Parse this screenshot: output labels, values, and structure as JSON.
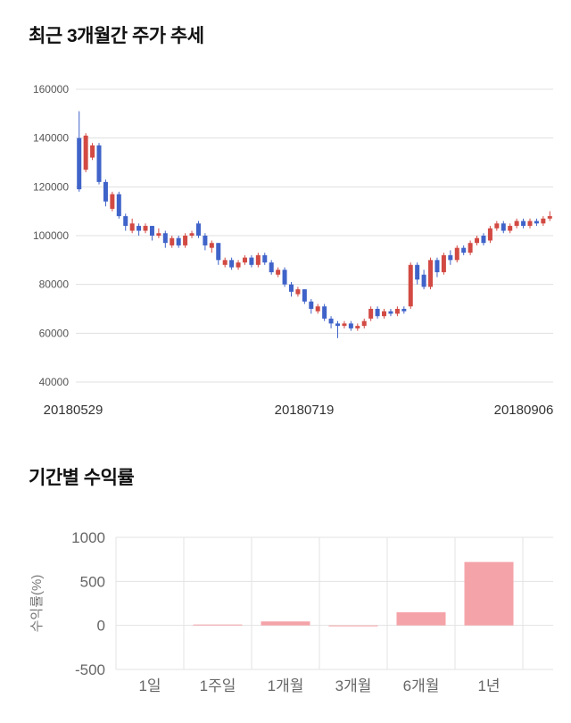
{
  "page": {
    "background": "#ffffff"
  },
  "section1": {
    "title": "최근 3개월간 주가 추세"
  },
  "section2": {
    "title": "기간별 수익률"
  },
  "chart_data": [
    {
      "type": "candlestick",
      "title": "최근 3개월간 주가 추세",
      "x_tick_labels": [
        "20180529",
        "20180719",
        "20180906"
      ],
      "y_ticks": [
        160000,
        140000,
        120000,
        100000,
        80000,
        60000,
        40000
      ],
      "ylim": [
        40000,
        160000
      ],
      "grid": true,
      "colors": {
        "up": "#d24a43",
        "down": "#3f63c9",
        "grid": "#e0e0e0",
        "axis_text": "#555555",
        "date_text": "#333333"
      },
      "candles_format": [
        "open",
        "high",
        "low",
        "close"
      ],
      "candles": [
        [
          140000,
          151000,
          118000,
          119000
        ],
        [
          127000,
          142000,
          126000,
          141000
        ],
        [
          132000,
          138000,
          131000,
          137000
        ],
        [
          137000,
          138000,
          121000,
          122000
        ],
        [
          122000,
          123000,
          112000,
          114000
        ],
        [
          111000,
          118000,
          110000,
          117000
        ],
        [
          117000,
          118000,
          107000,
          108000
        ],
        [
          108000,
          109000,
          102000,
          104000
        ],
        [
          102000,
          107000,
          101000,
          105000
        ],
        [
          104000,
          105000,
          100000,
          102000
        ],
        [
          102000,
          105000,
          101000,
          104000
        ],
        [
          104000,
          104000,
          98000,
          100000
        ],
        [
          100000,
          103000,
          99000,
          101000
        ],
        [
          101000,
          102000,
          95000,
          97000
        ],
        [
          96000,
          100000,
          95000,
          99000
        ],
        [
          99000,
          100000,
          95000,
          96000
        ],
        [
          96000,
          101000,
          95000,
          100000
        ],
        [
          100000,
          102000,
          99000,
          101000
        ],
        [
          105000,
          106000,
          99000,
          100000
        ],
        [
          100000,
          101000,
          94000,
          96000
        ],
        [
          95000,
          98000,
          93000,
          97000
        ],
        [
          97000,
          97000,
          88000,
          90000
        ],
        [
          88000,
          91000,
          87000,
          90000
        ],
        [
          90000,
          91000,
          86000,
          87000
        ],
        [
          87000,
          90000,
          86000,
          89000
        ],
        [
          89000,
          92000,
          88000,
          91000
        ],
        [
          91000,
          92000,
          87000,
          88000
        ],
        [
          88000,
          93000,
          87000,
          92000
        ],
        [
          92000,
          93000,
          88000,
          89000
        ],
        [
          89000,
          90000,
          84000,
          85000
        ],
        [
          84000,
          87000,
          83000,
          86000
        ],
        [
          86000,
          87000,
          79000,
          80000
        ],
        [
          80000,
          81000,
          75000,
          77000
        ],
        [
          76000,
          79000,
          75000,
          78000
        ],
        [
          78000,
          78000,
          72000,
          73000
        ],
        [
          73000,
          74000,
          68000,
          70000
        ],
        [
          69000,
          72000,
          68000,
          71000
        ],
        [
          71000,
          72000,
          65000,
          66000
        ],
        [
          66000,
          67000,
          62000,
          64000
        ],
        [
          64000,
          65000,
          58000,
          63000
        ],
        [
          63000,
          65000,
          62000,
          64000
        ],
        [
          64000,
          65000,
          61000,
          62000
        ],
        [
          62000,
          64000,
          61000,
          63000
        ],
        [
          63000,
          66000,
          62000,
          65000
        ],
        [
          66000,
          71000,
          65000,
          70000
        ],
        [
          70000,
          71000,
          66000,
          67000
        ],
        [
          67000,
          70000,
          66000,
          69000
        ],
        [
          69000,
          70000,
          67000,
          68000
        ],
        [
          68000,
          71000,
          67000,
          70000
        ],
        [
          70000,
          71000,
          68000,
          69000
        ],
        [
          71000,
          89000,
          70000,
          88000
        ],
        [
          88000,
          89000,
          80000,
          82000
        ],
        [
          84000,
          86000,
          78000,
          79000
        ],
        [
          79000,
          91000,
          78000,
          90000
        ],
        [
          90000,
          91000,
          83000,
          85000
        ],
        [
          85000,
          93000,
          84000,
          92000
        ],
        [
          92000,
          94000,
          88000,
          90000
        ],
        [
          90000,
          96000,
          89000,
          95000
        ],
        [
          95000,
          96000,
          92000,
          93000
        ],
        [
          93000,
          98000,
          92000,
          97000
        ],
        [
          97000,
          100000,
          96000,
          99000
        ],
        [
          100000,
          101000,
          96000,
          97000
        ],
        [
          98000,
          104000,
          97000,
          103000
        ],
        [
          103000,
          106000,
          102000,
          105000
        ],
        [
          105000,
          106000,
          101000,
          102000
        ],
        [
          102000,
          105000,
          101000,
          104000
        ],
        [
          104000,
          107000,
          103000,
          106000
        ],
        [
          106000,
          107000,
          103000,
          104000
        ],
        [
          104000,
          107000,
          103000,
          106000
        ],
        [
          106000,
          107000,
          104000,
          105000
        ],
        [
          105000,
          108000,
          104000,
          107000
        ],
        [
          107000,
          110000,
          106000,
          108000
        ]
      ]
    },
    {
      "type": "bar",
      "title": "기간별 수익률",
      "categories": [
        "1일",
        "1주일",
        "1개월",
        "3개월",
        "6개월",
        "1년"
      ],
      "values": [
        1,
        8,
        45,
        -8,
        150,
        720
      ],
      "ylabel": "수익률(%)",
      "y_ticks": [
        1000,
        500,
        0,
        -500
      ],
      "ylim": [
        -500,
        1000
      ],
      "grid": true,
      "legend": "none",
      "colors": {
        "bar": "#f4a3a8",
        "grid": "#e3e3e3",
        "axis_text": "#666666",
        "ylabel_text": "#777777"
      }
    }
  ]
}
